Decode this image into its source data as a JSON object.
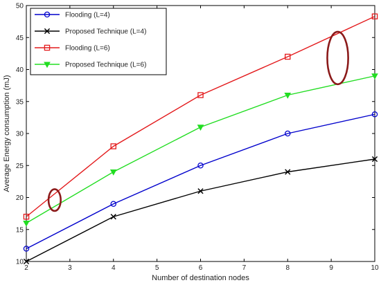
{
  "chart_data": {
    "type": "line",
    "title": "",
    "xlabel": "Number of destination nodes",
    "ylabel": "Average Energy consumption (mJ)",
    "xlim": [
      2,
      10
    ],
    "ylim": [
      10,
      50
    ],
    "xticks": [
      2,
      3,
      4,
      5,
      6,
      7,
      8,
      9,
      10
    ],
    "yticks": [
      10,
      15,
      20,
      25,
      30,
      35,
      40,
      45,
      50
    ],
    "grid": false,
    "legend_position": "top-left",
    "series": [
      {
        "name": "Flooding (L=4)",
        "color": "#0000cc",
        "marker": "circle",
        "x": [
          2,
          4,
          6,
          8,
          10
        ],
        "y": [
          12,
          19,
          25,
          30,
          33
        ]
      },
      {
        "name": "Proposed Technique (L=4)",
        "color": "#000000",
        "marker": "x",
        "x": [
          2,
          4,
          6,
          8,
          10
        ],
        "y": [
          10,
          17,
          21,
          24,
          26
        ]
      },
      {
        "name": "Flooding (L=6)",
        "color": "#e31a1c",
        "marker": "square",
        "x": [
          2,
          4,
          6,
          8,
          10
        ],
        "y": [
          17,
          28,
          36,
          42,
          48.3
        ]
      },
      {
        "name": "Proposed Technique (L=6)",
        "color": "#22dd22",
        "marker": "triangle-down",
        "x": [
          2,
          4,
          6,
          8,
          10
        ],
        "y": [
          16,
          24,
          31,
          36,
          39
        ]
      }
    ],
    "annotations": [
      {
        "shape": "ellipse",
        "color": "#8b1a1a",
        "x_center": 2.65,
        "y_center": 19.6,
        "x_radius": 0.14,
        "y_radius": 1.7
      },
      {
        "shape": "ellipse",
        "color": "#8b1a1a",
        "x_center": 9.15,
        "y_center": 41.8,
        "x_radius": 0.24,
        "y_radius": 4.1
      }
    ]
  }
}
